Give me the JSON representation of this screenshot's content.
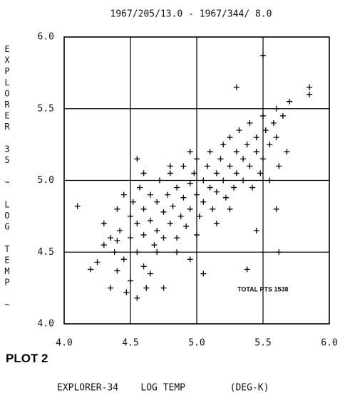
{
  "caption": "PLOT 2",
  "chart_data": {
    "type": "scatter",
    "title": "1967/205/13.0 - 1967/344/ 8.0",
    "y_label": "EXPLORER 35 ~ LOG TEMP ~",
    "x_label": "EXPLORER-34    LOG TEMP        (DEG-K)",
    "annotation": "TOTAL PTS 1538",
    "color": "#000000",
    "grid": true,
    "xlim": [
      4,
      6
    ],
    "ylim": [
      4,
      6
    ],
    "xticks": [
      {
        "value": 4,
        "label": "4.0"
      },
      4.5,
      {
        "value": 5,
        "label": "5.0"
      },
      5.5,
      {
        "value": 6,
        "label": "6.0"
      }
    ],
    "yticks": [
      {
        "value": 4,
        "label": "4.0"
      },
      4.5,
      {
        "value": 5,
        "label": "5.0"
      },
      5.5,
      {
        "value": 6,
        "label": "6.0"
      }
    ],
    "x": [
      4.1,
      4.2,
      4.25,
      4.3,
      4.3,
      4.35,
      4.35,
      4.38,
      4.4,
      4.4,
      4.42,
      4.45,
      4.45,
      4.47,
      4.5,
      4.5,
      4.5,
      4.52,
      4.55,
      4.55,
      4.57,
      4.6,
      4.6,
      4.6,
      4.62,
      4.65,
      4.65,
      4.68,
      4.7,
      4.7,
      4.72,
      4.75,
      4.75,
      4.78,
      4.8,
      4.8,
      4.82,
      4.85,
      4.85,
      4.88,
      4.9,
      4.9,
      4.92,
      4.95,
      4.95,
      4.98,
      5.0,
      5.0,
      5.02,
      5.05,
      5.05,
      5.08,
      5.1,
      5.1,
      5.12,
      5.15,
      5.15,
      5.18,
      5.2,
      5.2,
      5.22,
      5.25,
      5.25,
      5.28,
      5.3,
      5.3,
      5.32,
      5.35,
      5.35,
      5.38,
      5.4,
      5.4,
      5.42,
      5.45,
      5.45,
      5.48,
      5.5,
      5.5,
      5.52,
      5.55,
      5.55,
      5.58,
      5.6,
      5.6,
      5.62,
      5.65,
      5.68,
      5.7,
      4.95,
      5.45,
      5.62,
      5.38,
      5.05,
      4.75,
      4.85,
      5.0,
      5.85,
      5.5,
      5.3,
      4.55,
      4.8,
      4.65,
      4.55,
      5.15,
      5.25,
      4.7,
      4.6,
      4.4,
      5.85,
      4.95,
      5.6
    ],
    "y": [
      4.82,
      4.38,
      4.43,
      4.55,
      4.7,
      4.25,
      4.6,
      4.5,
      4.8,
      4.37,
      4.65,
      4.45,
      4.9,
      4.22,
      4.6,
      4.75,
      4.3,
      4.85,
      4.5,
      4.7,
      4.95,
      4.62,
      4.8,
      4.4,
      4.25,
      4.72,
      4.9,
      4.55,
      4.85,
      4.65,
      5.0,
      4.78,
      4.6,
      4.9,
      4.7,
      5.05,
      4.82,
      4.95,
      4.6,
      4.75,
      4.88,
      5.1,
      4.68,
      4.98,
      4.8,
      5.05,
      4.9,
      5.15,
      4.75,
      5.0,
      4.85,
      5.1,
      4.95,
      5.2,
      4.8,
      5.05,
      4.92,
      5.15,
      5.0,
      5.25,
      4.88,
      5.1,
      5.3,
      4.95,
      5.05,
      5.2,
      5.35,
      5.0,
      5.15,
      5.25,
      5.1,
      5.4,
      4.95,
      5.2,
      5.3,
      5.05,
      5.15,
      5.45,
      5.35,
      5.25,
      5.0,
      5.4,
      5.3,
      5.5,
      5.1,
      5.45,
      5.2,
      5.55,
      4.45,
      4.65,
      4.5,
      4.38,
      4.35,
      4.25,
      4.5,
      4.62,
      5.65,
      5.87,
      5.65,
      5.15,
      5.1,
      4.35,
      4.18,
      4.7,
      4.8,
      4.5,
      5.05,
      4.58,
      5.6,
      5.2,
      4.8
    ]
  }
}
